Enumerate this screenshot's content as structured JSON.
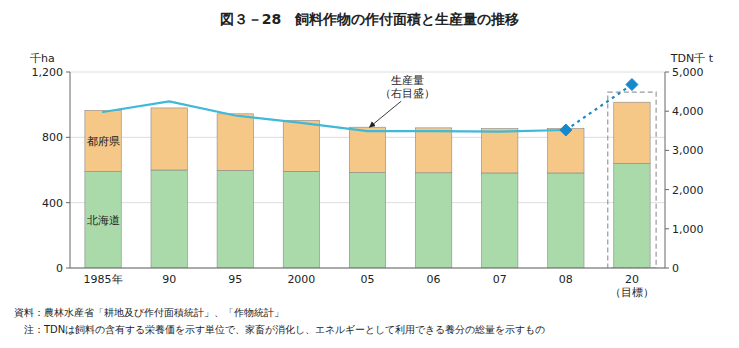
{
  "chart_data": {
    "type": "bar",
    "title": "図３－28　飼料作物の作付面積と生産量の推移",
    "y_label": "千ha",
    "y2_label": "TDN千 t",
    "stacked": true,
    "grid": true,
    "categories": [
      "1985年",
      "90",
      "95",
      "2000",
      "05",
      "06",
      "07",
      "08",
      "20\n（目標）"
    ],
    "series": [
      {
        "name": "北海道",
        "color": "#aadaaa",
        "values": [
          590,
          600,
          597,
          592,
          585,
          583,
          582,
          582,
          640
        ]
      },
      {
        "name": "都府県",
        "color": "#f5c888",
        "values": [
          375,
          380,
          347,
          312,
          277,
          275,
          272,
          272,
          375
        ]
      },
      {
        "type": "line",
        "axis": "y2",
        "color": "#40b8d8",
        "line_style": "solid",
        "values": [
          3980,
          4250,
          3890,
          3700,
          3490,
          3490,
          3480,
          3520,
          null
        ]
      },
      {
        "type": "line",
        "axis": "y2",
        "color": "#1888cc",
        "line_style": "dotted",
        "marker": "diamond",
        "values": [
          null,
          null,
          null,
          null,
          null,
          null,
          null,
          3520,
          4680
        ]
      }
    ],
    "ylim": [
      0,
      1200
    ],
    "yticks": [
      0,
      400,
      800,
      {
        "value": 1200,
        "label": "1,200"
      }
    ],
    "y2lim": [
      0,
      5000
    ],
    "y2ticks": [
      0,
      {
        "value": 1000,
        "label": "1,000"
      },
      {
        "value": 2000,
        "label": "2,000"
      },
      {
        "value": 3000,
        "label": "3,000"
      },
      {
        "value": 4000,
        "label": "4,000"
      },
      {
        "value": 5000,
        "label": "5,000"
      }
    ],
    "annotation": "生産量\n（右目盛）",
    "notes": [
      "資料：農林水産省「耕地及び作付面積統計」、「作物統計」",
      "　注：TDNは飼料の含有する栄養価を示す単位で、家畜が消化し、エネルギーとして利用できる養分の総量を示すもの"
    ]
  }
}
